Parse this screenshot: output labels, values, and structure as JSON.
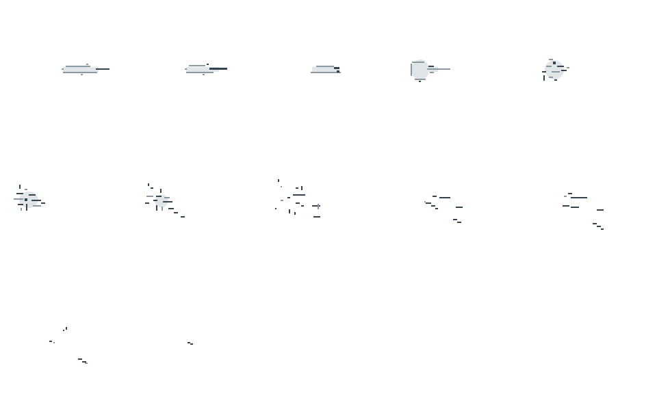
{
  "spritesheet": {
    "columns": 5,
    "rows": 3,
    "frame_count": 12,
    "colors": {
      "background": "#ffffff",
      "pale_fill": "#dfe5e8",
      "mid_outline": "#8a989f",
      "dark_outline": "#34434c"
    },
    "frames": [
      {
        "id": 1,
        "stage": "streak"
      },
      {
        "id": 2,
        "stage": "streak"
      },
      {
        "id": 3,
        "stage": "streak"
      },
      {
        "id": 4,
        "stage": "puff"
      },
      {
        "id": 5,
        "stage": "burst"
      },
      {
        "id": 6,
        "stage": "burst"
      },
      {
        "id": 7,
        "stage": "burst"
      },
      {
        "id": 8,
        "stage": "scatter"
      },
      {
        "id": 9,
        "stage": "dashes"
      },
      {
        "id": 10,
        "stage": "dashes"
      },
      {
        "id": 11,
        "stage": "fading"
      },
      {
        "id": 12,
        "stage": "fading"
      }
    ]
  }
}
